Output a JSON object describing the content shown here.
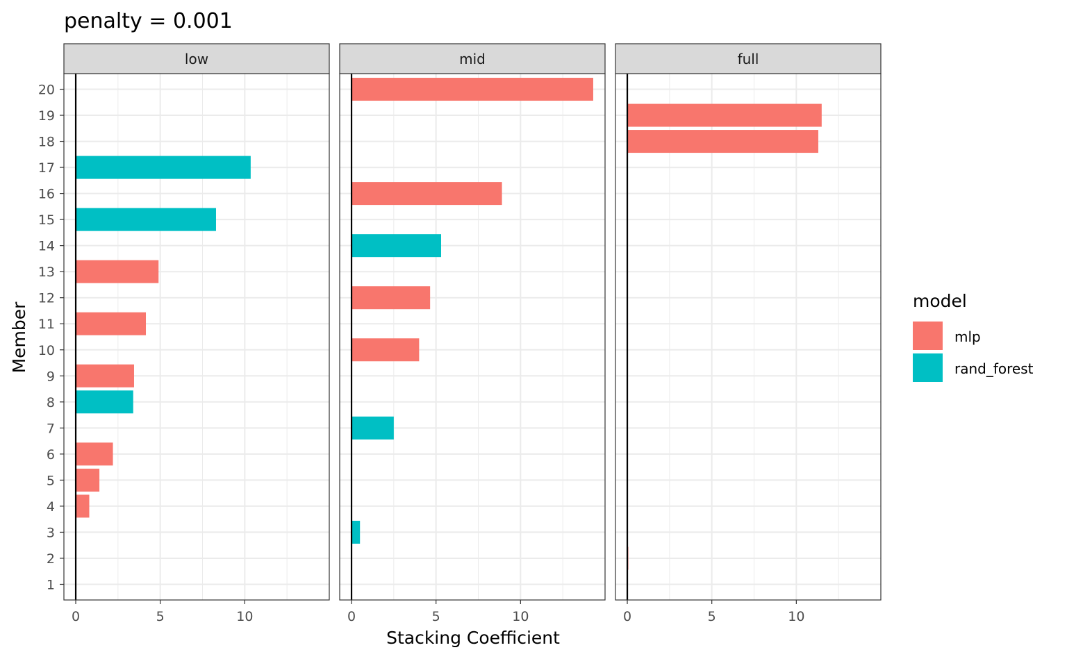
{
  "chart_data": {
    "type": "bar",
    "orientation": "horizontal",
    "title": "penalty = 0.001",
    "xlabel": "Stacking Coefficient",
    "ylabel": "Member",
    "xlim": [
      -0.7,
      15.0
    ],
    "x_ticks": [
      0,
      5,
      10
    ],
    "y_ticks": [
      1,
      2,
      3,
      4,
      5,
      6,
      7,
      8,
      9,
      10,
      11,
      12,
      13,
      14,
      15,
      16,
      17,
      18,
      19,
      20
    ],
    "grid": true,
    "legend": {
      "title": "model",
      "placement": "right",
      "entries": [
        {
          "label": "mlp",
          "color": "#F8766D"
        },
        {
          "label": "rand_forest",
          "color": "#00BFC4"
        }
      ]
    },
    "facets": [
      {
        "label": "low",
        "bars": [
          {
            "member": 17,
            "value": 10.35,
            "model": "rand_forest"
          },
          {
            "member": 15,
            "value": 8.3,
            "model": "rand_forest"
          },
          {
            "member": 13,
            "value": 4.9,
            "model": "mlp"
          },
          {
            "member": 11,
            "value": 4.15,
            "model": "mlp"
          },
          {
            "member": 9,
            "value": 3.45,
            "model": "mlp"
          },
          {
            "member": 8,
            "value": 3.4,
            "model": "rand_forest"
          },
          {
            "member": 6,
            "value": 2.2,
            "model": "mlp"
          },
          {
            "member": 5,
            "value": 1.4,
            "model": "mlp"
          },
          {
            "member": 4,
            "value": 0.8,
            "model": "mlp"
          }
        ]
      },
      {
        "label": "mid",
        "bars": [
          {
            "member": 20,
            "value": 14.3,
            "model": "mlp"
          },
          {
            "member": 16,
            "value": 8.9,
            "model": "mlp"
          },
          {
            "member": 14,
            "value": 5.3,
            "model": "rand_forest"
          },
          {
            "member": 12,
            "value": 4.65,
            "model": "mlp"
          },
          {
            "member": 10,
            "value": 4.0,
            "model": "mlp"
          },
          {
            "member": 7,
            "value": 2.5,
            "model": "rand_forest"
          },
          {
            "member": 3,
            "value": 0.5,
            "model": "rand_forest"
          }
        ]
      },
      {
        "label": "full",
        "bars": [
          {
            "member": 19,
            "value": 11.5,
            "model": "mlp"
          },
          {
            "member": 18,
            "value": 11.3,
            "model": "mlp"
          },
          {
            "member": 2,
            "value": 0.05,
            "model": "mlp"
          }
        ]
      }
    ]
  }
}
